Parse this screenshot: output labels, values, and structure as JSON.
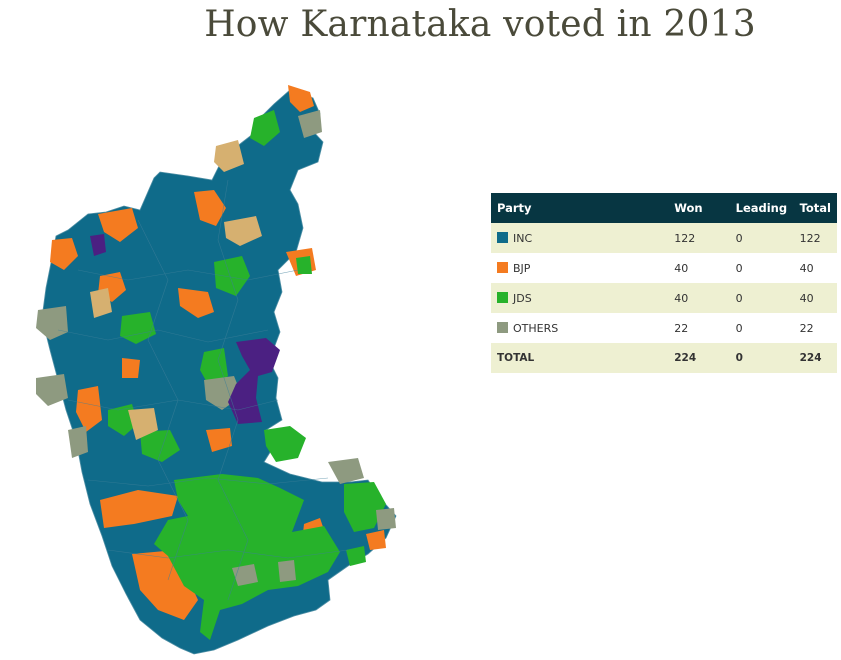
{
  "title": "How Karnataka voted in 2013",
  "colors": {
    "INC": "#0f6b8a",
    "BJP": "#f47b20",
    "JDS": "#27b22b",
    "OTHERS": "#8e9a80",
    "INDEPENDENT_TAN": "#d6b070",
    "PURPLE": "#4b2082",
    "header_bg": "#073642",
    "row_alt": "#eef0d2"
  },
  "table": {
    "headers": [
      "Party",
      "Won",
      "Leading",
      "Total"
    ],
    "rows": [
      {
        "party": "INC",
        "won": "122",
        "leading": "0",
        "total": "122",
        "color": "#0f6b8a"
      },
      {
        "party": "BJP",
        "won": "40",
        "leading": "0",
        "total": "40",
        "color": "#f47b20"
      },
      {
        "party": "JDS",
        "won": "40",
        "leading": "0",
        "total": "40",
        "color": "#27b22b"
      },
      {
        "party": "OTHERS",
        "won": "22",
        "leading": "0",
        "total": "22",
        "color": "#8e9a80"
      }
    ],
    "total": {
      "label": "TOTAL",
      "won": "224",
      "leading": "0",
      "total": "224"
    }
  }
}
